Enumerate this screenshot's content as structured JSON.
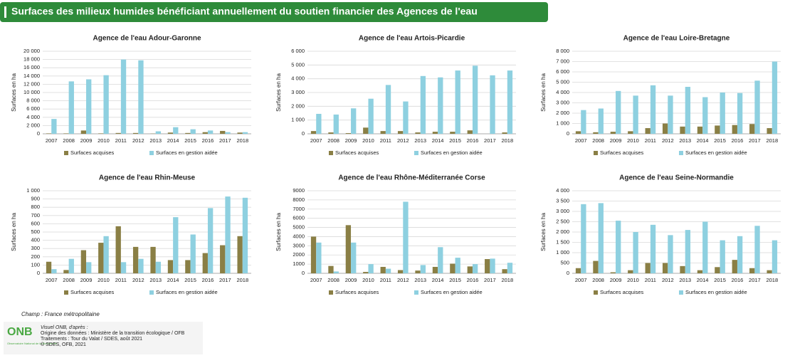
{
  "header": {
    "title": "Surfaces des milieux humides bénéficiant annuellement  du soutien financier des Agences de l'eau"
  },
  "chart_data": [
    {
      "type": "bar",
      "title": "Agence de l'eau Adour-Garonne",
      "y_label": "Surfaces en ha",
      "categories": [
        "2007",
        "2008",
        "2009",
        "2010",
        "2011",
        "2012",
        "2013",
        "2014",
        "2015",
        "2016",
        "2017",
        "2018"
      ],
      "series": [
        {
          "name": "Surfaces acquises",
          "color": "#8a7f45",
          "values": [
            100,
            100,
            800,
            100,
            200,
            200,
            50,
            300,
            200,
            400,
            700,
            300
          ]
        },
        {
          "name": "Surfaces en gestion aidée",
          "color": "#8ed0e0",
          "values": [
            3600,
            12700,
            13200,
            14200,
            18000,
            17800,
            600,
            1600,
            1100,
            800,
            400,
            400
          ]
        }
      ],
      "ylim": [
        0,
        20000
      ],
      "yticks": [
        0,
        {
          "value": 2000,
          "label": "2 000"
        },
        {
          "value": 4000,
          "label": "4 000"
        },
        {
          "value": 6000,
          "label": "6 000"
        },
        {
          "value": 8000,
          "label": "8 000"
        },
        {
          "value": 10000,
          "label": "10 000"
        },
        {
          "value": 12000,
          "label": "12 000"
        },
        {
          "value": 14000,
          "label": "14 000"
        },
        {
          "value": 16000,
          "label": "16 000"
        },
        {
          "value": 18000,
          "label": "18 000"
        },
        {
          "value": 20000,
          "label": "20 000"
        }
      ],
      "grid": true
    },
    {
      "type": "bar",
      "title": "Agence de l'eau Artois-Picardie",
      "y_label": "Surfaces en ha",
      "categories": [
        "2007",
        "2008",
        "2009",
        "2010",
        "2011",
        "2012",
        "2013",
        "2014",
        "2015",
        "2016",
        "2017",
        "2018"
      ],
      "series": [
        {
          "name": "Surfaces acquises",
          "color": "#8a7f45",
          "values": [
            200,
            100,
            50,
            450,
            200,
            200,
            100,
            150,
            150,
            250,
            0,
            100
          ]
        },
        {
          "name": "Surfaces en gestion aidée",
          "color": "#8ed0e0",
          "values": [
            1450,
            1400,
            1850,
            2550,
            3550,
            2350,
            4200,
            4100,
            4600,
            4950,
            4250,
            4600
          ]
        }
      ],
      "ylim": [
        0,
        6000
      ],
      "yticks": [
        0,
        {
          "value": 1000,
          "label": "1 000"
        },
        {
          "value": 2000,
          "label": "2 000"
        },
        {
          "value": 3000,
          "label": "3 000"
        },
        {
          "value": 4000,
          "label": "4 000"
        },
        {
          "value": 5000,
          "label": "5 000"
        },
        {
          "value": 6000,
          "label": "6 000"
        }
      ],
      "grid": true
    },
    {
      "type": "bar",
      "title": "Agence de l'eau Loire-Bretagne",
      "y_label": "Surfaces en ha",
      "categories": [
        "2007",
        "2008",
        "2009",
        "2010",
        "2011",
        "2012",
        "2013",
        "2014",
        "2015",
        "2016",
        "2017",
        "2018"
      ],
      "series": [
        {
          "name": "Surfaces acquises",
          "color": "#8a7f45",
          "values": [
            250,
            150,
            200,
            250,
            550,
            1000,
            700,
            700,
            800,
            850,
            950,
            550
          ]
        },
        {
          "name": "Surfaces en gestion aidée",
          "color": "#8ed0e0",
          "values": [
            2300,
            2450,
            4150,
            3700,
            4700,
            3700,
            4550,
            3550,
            4000,
            3950,
            5150,
            7000
          ]
        }
      ],
      "ylim": [
        0,
        8000
      ],
      "yticks": [
        0,
        {
          "value": 1000,
          "label": "1 000"
        },
        {
          "value": 2000,
          "label": "2 000"
        },
        {
          "value": 3000,
          "label": "3 000"
        },
        {
          "value": 4000,
          "label": "4 000"
        },
        {
          "value": 5000,
          "label": "5 000"
        },
        {
          "value": 6000,
          "label": "6 000"
        },
        {
          "value": 7000,
          "label": "7 000"
        },
        {
          "value": 8000,
          "label": "8 000"
        }
      ],
      "grid": true
    },
    {
      "type": "bar",
      "title": "Agence de l'eau Rhin-Meuse",
      "y_label": "Surfaces en ha",
      "categories": [
        "2007",
        "2008",
        "2009",
        "2010",
        "2011",
        "2012",
        "2013",
        "2014",
        "2015",
        "2016",
        "2017",
        "2018"
      ],
      "series": [
        {
          "name": "Surfaces acquises",
          "color": "#8a7f45",
          "values": [
            140,
            40,
            280,
            370,
            570,
            320,
            320,
            160,
            160,
            245,
            340,
            450
          ]
        },
        {
          "name": "Surfaces en gestion aidée",
          "color": "#8ed0e0",
          "values": [
            50,
            175,
            135,
            450,
            135,
            175,
            140,
            680,
            470,
            790,
            930,
            915
          ]
        }
      ],
      "ylim": [
        0,
        1000
      ],
      "yticks": [
        0,
        100,
        200,
        300,
        400,
        500,
        600,
        700,
        800,
        900,
        {
          "value": 1000,
          "label": "1 000"
        }
      ],
      "grid": true
    },
    {
      "type": "bar",
      "title": "Agence de l'eau Rhône-Méditerranée Corse",
      "y_label": "Surfaces en ha",
      "categories": [
        "2007",
        "2008",
        "2009",
        "2010",
        "2011",
        "2012",
        "2013",
        "2014",
        "2015",
        "2016",
        "2017",
        "2018"
      ],
      "series": [
        {
          "name": "Surfaces acquises",
          "color": "#8a7f45",
          "values": [
            4000,
            800,
            5250,
            150,
            700,
            350,
            300,
            700,
            1050,
            750,
            1550,
            450
          ]
        },
        {
          "name": "Surfaces en gestion aidée",
          "color": "#8ed0e0",
          "values": [
            3350,
            200,
            3350,
            1000,
            500,
            7800,
            900,
            2850,
            1700,
            1000,
            1600,
            1150
          ]
        }
      ],
      "ylim": [
        0,
        9000
      ],
      "yticks": [
        0,
        1000,
        2000,
        3000,
        4000,
        5000,
        6000,
        7000,
        8000,
        9000
      ],
      "grid": true
    },
    {
      "type": "bar",
      "title": "Agence de l'eau Seine-Normandie",
      "y_label": "Surfaces en ha",
      "categories": [
        "2007",
        "2008",
        "2009",
        "2010",
        "2011",
        "2012",
        "2013",
        "2014",
        "2015",
        "2016",
        "2017",
        "2018"
      ],
      "series": [
        {
          "name": "Surfaces acquises",
          "color": "#8a7f45",
          "values": [
            250,
            600,
            50,
            150,
            500,
            500,
            350,
            150,
            300,
            650,
            250,
            150
          ]
        },
        {
          "name": "Surfaces en gestion aidée",
          "color": "#8ed0e0",
          "values": [
            3350,
            3400,
            2550,
            2000,
            2350,
            1850,
            2100,
            2500,
            1600,
            1800,
            2300,
            1600
          ]
        }
      ],
      "ylim": [
        0,
        4000
      ],
      "yticks": [
        0,
        {
          "value": 500,
          "label": "500"
        },
        {
          "value": 1000,
          "label": "1 000"
        },
        {
          "value": 1500,
          "label": "1 500"
        },
        {
          "value": 2000,
          "label": "2 000"
        },
        {
          "value": 2500,
          "label": "2 500"
        },
        {
          "value": 3000,
          "label": "3 000"
        },
        {
          "value": 3500,
          "label": "3 500"
        },
        {
          "value": 4000,
          "label": "4 000"
        }
      ],
      "grid": true
    }
  ],
  "footer": {
    "scope": "Champ : France métropolitaine",
    "logo": "ONB",
    "logo_caption": "Observatoire National de la Biodiversité",
    "credits": [
      "Visuel ONB, d'après :",
      "Origine des données : Ministère de la transition écologique / OFB",
      "Traitements : Tour du Valat / SDES, août 2021",
      "©  SDES, OFB, 2021"
    ]
  }
}
